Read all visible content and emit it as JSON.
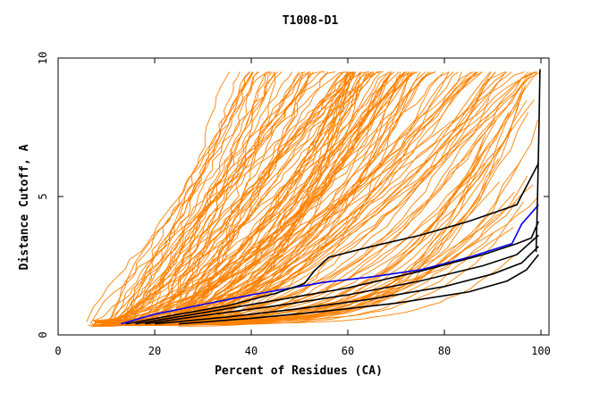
{
  "chart_data": {
    "type": "line",
    "title": "T1008-D1",
    "xlabel": "Percent of Residues (CA)",
    "ylabel": "Distance Cutoff, A",
    "xlim": [
      0,
      100
    ],
    "ylim": [
      0,
      10
    ],
    "x_ticks": [
      0,
      20,
      40,
      60,
      80,
      100
    ],
    "y_ticks": [
      0,
      5,
      10
    ],
    "grid": false,
    "colors": {
      "background_curves": "#ff8000",
      "highlight_black": "#000000",
      "highlight_blue": "#0000ff"
    },
    "highlight_series": [
      {
        "name": "curve-blue",
        "color": "#0000ff",
        "x": [
          13,
          20,
          30,
          40,
          50,
          55,
          65,
          75,
          85,
          94,
          96,
          99.5
        ],
        "y": [
          0.4,
          0.75,
          1.1,
          1.45,
          1.75,
          1.9,
          2.1,
          2.35,
          2.8,
          3.3,
          4.0,
          4.7
        ]
      },
      {
        "name": "curve-black-1",
        "color": "#000000",
        "x": [
          14,
          25,
          35,
          45,
          51,
          53,
          56,
          65,
          75,
          85,
          95,
          99.5
        ],
        "y": [
          0.4,
          0.75,
          1.05,
          1.5,
          1.85,
          2.3,
          2.8,
          3.2,
          3.6,
          4.1,
          4.7,
          6.2
        ]
      },
      {
        "name": "curve-black-2",
        "color": "#000000",
        "x": [
          16,
          30,
          45,
          60,
          75,
          88,
          95,
          98,
          99.5
        ],
        "y": [
          0.4,
          0.8,
          1.25,
          1.7,
          2.3,
          2.9,
          3.3,
          3.5,
          4.1
        ]
      },
      {
        "name": "curve-black-3",
        "color": "#000000",
        "x": [
          18,
          30,
          45,
          60,
          75,
          88,
          95,
          99.5
        ],
        "y": [
          0.4,
          0.7,
          1.05,
          1.45,
          1.95,
          2.5,
          2.9,
          3.6
        ]
      },
      {
        "name": "curve-black-4",
        "color": "#000000",
        "x": [
          20,
          35,
          50,
          65,
          80,
          90,
          96,
          99.5
        ],
        "y": [
          0.4,
          0.65,
          0.95,
          1.3,
          1.75,
          2.2,
          2.6,
          3.2
        ]
      },
      {
        "name": "curve-black-5",
        "color": "#000000",
        "x": [
          25,
          40,
          55,
          70,
          85,
          93,
          97,
          99.5
        ],
        "y": [
          0.4,
          0.6,
          0.85,
          1.15,
          1.55,
          1.95,
          2.35,
          2.9
        ]
      },
      {
        "name": "curve-black-6",
        "color": "#000000",
        "x": [
          99,
          99.3,
          99.6,
          99.8
        ],
        "y": [
          3.0,
          5.0,
          7.5,
          9.6
        ]
      }
    ],
    "background_series_generated": true,
    "background_series_count": 150
  }
}
